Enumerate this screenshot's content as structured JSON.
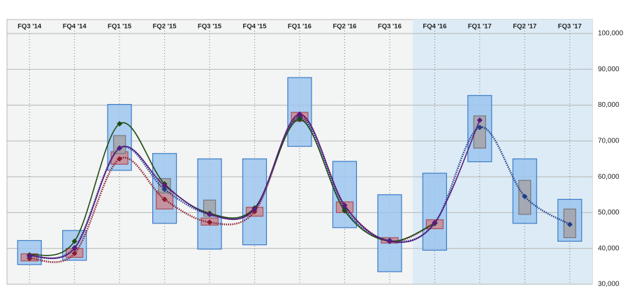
{
  "chart_data": {
    "type": "range",
    "categories": [
      "FQ3 '14",
      "FQ4 '14",
      "FQ1 '15",
      "FQ2 '15",
      "FQ3 '15",
      "FQ4 '15",
      "FQ1 '16",
      "FQ2 '16",
      "FQ3 '16",
      "FQ4 '16",
      "FQ1 '17",
      "FQ2 '17",
      "FQ3 '17"
    ],
    "ylim": [
      30000,
      100000
    ],
    "yticks": [
      {
        "value": 30000,
        "label": "30,000"
      },
      {
        "value": 40000,
        "label": "40,000"
      },
      {
        "value": 50000,
        "label": "50,000"
      },
      {
        "value": 60000,
        "label": "60,000"
      },
      {
        "value": 70000,
        "label": "70,000"
      },
      {
        "value": 80000,
        "label": "80,000"
      },
      {
        "value": 90000,
        "label": "90,000"
      },
      {
        "value": 100000,
        "label": "100,000"
      }
    ],
    "grid": true,
    "ranges": [
      {
        "color": "#9cc6ee",
        "stroke": "#3b7cc6",
        "low": [
          35500,
          36700,
          61800,
          47000,
          39800,
          41000,
          68500,
          45800,
          33500,
          39500,
          64200,
          47000,
          42000
        ],
        "high": [
          42200,
          45000,
          80200,
          66500,
          65000,
          65000,
          87700,
          64300,
          55000,
          61000,
          82700,
          65000,
          53700
        ]
      },
      {
        "color": "#c98a94",
        "stroke": "#a8505c",
        "low": [
          36500,
          37500,
          63500,
          51000,
          46500,
          49000,
          75500,
          50000,
          41500,
          45500,
          null,
          null,
          null
        ],
        "high": [
          38500,
          40000,
          67000,
          56000,
          48500,
          51500,
          78000,
          53000,
          43000,
          48000,
          null,
          null,
          null
        ]
      },
      {
        "color": "#a3a3a8",
        "stroke": "#77777c",
        "low": [
          null,
          null,
          66500,
          55500,
          49000,
          null,
          null,
          null,
          null,
          null,
          68000,
          49500,
          43000
        ],
        "high": [
          null,
          null,
          71500,
          59500,
          53500,
          null,
          null,
          null,
          null,
          null,
          77000,
          59000,
          51000
        ]
      }
    ],
    "lines": [
      {
        "color": "#8b1a2a",
        "dash": true,
        "values": [
          37200,
          38600,
          65000,
          53700,
          47300,
          50300,
          77000,
          52000,
          42000,
          47000,
          null,
          null,
          null
        ]
      },
      {
        "color": "#1e3f8a",
        "dash": true,
        "values": [
          37800,
          40200,
          68000,
          56500,
          49500,
          51000,
          76500,
          51000,
          42200,
          47000,
          73800,
          54500,
          46700
        ]
      },
      {
        "color": "#1f4a12",
        "dash": false,
        "values": [
          38200,
          42000,
          74800,
          58000,
          49800,
          51300,
          76000,
          50500,
          42000,
          47000,
          null,
          null,
          null
        ]
      },
      {
        "color": "#5a1a80",
        "dash": false,
        "values": [
          38000,
          40000,
          68000,
          57500,
          49500,
          51000,
          77500,
          52000,
          42000,
          47200,
          75800,
          null,
          null
        ]
      }
    ]
  }
}
